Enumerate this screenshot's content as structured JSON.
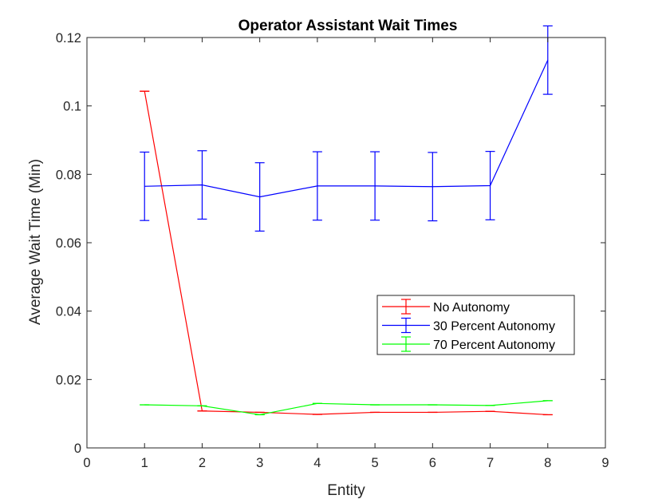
{
  "chart_data": {
    "type": "line",
    "title": "Operator Assistant Wait Times",
    "xlabel": "Entity",
    "ylabel": "Average Wait Time (Min)",
    "xlim": [
      0,
      9
    ],
    "ylim": [
      0,
      0.12
    ],
    "xticks": [
      0,
      1,
      2,
      3,
      4,
      5,
      6,
      7,
      8,
      9
    ],
    "xtick_labels": [
      "0",
      "1",
      "2",
      "3",
      "4",
      "5",
      "6",
      "7",
      "8",
      "9"
    ],
    "yticks": [
      0,
      0.02,
      0.04,
      0.06,
      0.08,
      0.1,
      0.12
    ],
    "ytick_labels": [
      "0",
      "0.02",
      "0.04",
      "0.06",
      "0.08",
      "0.1",
      "0.12"
    ],
    "grid": false,
    "legend_position": "lower-right",
    "x": [
      1,
      2,
      3,
      4,
      5,
      6,
      7,
      8
    ],
    "series": [
      {
        "name": "No Autonomy",
        "color": "#ff0000",
        "values": [
          0.1043,
          0.0108,
          0.0104,
          0.0098,
          0.0104,
          0.0104,
          0.0107,
          0.0097
        ],
        "error": [
          0,
          0,
          0,
          0,
          0,
          0,
          0,
          0
        ]
      },
      {
        "name": "30 Percent Autonomy",
        "color": "#0000ff",
        "values": [
          0.0765,
          0.0769,
          0.0734,
          0.0766,
          0.0766,
          0.0764,
          0.0767,
          0.1134
        ],
        "error": [
          0.01,
          0.01,
          0.01,
          0.01,
          0.01,
          0.01,
          0.01,
          0.01
        ]
      },
      {
        "name": "70 Percent Autonomy",
        "color": "#00ff00",
        "values": [
          0.0126,
          0.0123,
          0.0097,
          0.013,
          0.0126,
          0.0126,
          0.0124,
          0.0138
        ],
        "error": [
          0,
          0,
          0,
          0,
          0,
          0,
          0,
          0
        ]
      }
    ]
  }
}
